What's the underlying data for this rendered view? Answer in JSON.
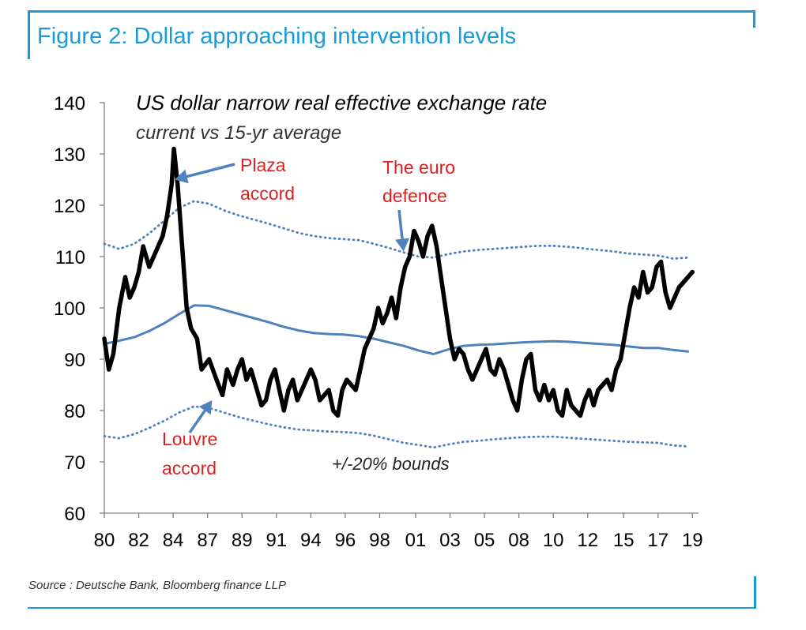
{
  "figure": {
    "title": "Figure 2: Dollar approaching intervention levels",
    "source": "Source : Deutsche Bank, Bloomberg finance LLP"
  },
  "colors": {
    "accent": "#1a9ad6",
    "series_main": "#000000",
    "series_avg": "#4f81bd",
    "annotation": "#e02020"
  },
  "chart_data": {
    "type": "line",
    "title": "US dollar narrow real effective exchange rate",
    "subtitle": "current vs 15-yr average",
    "xlabel": "",
    "ylabel": "",
    "xlim": [
      1980,
      2019.6
    ],
    "ylim": [
      60,
      140
    ],
    "yticks": [
      60,
      70,
      80,
      90,
      100,
      110,
      120,
      130,
      140
    ],
    "xtick_labels": [
      "80",
      "82",
      "84",
      "87",
      "89",
      "91",
      "94",
      "96",
      "98",
      "01",
      "03",
      "05",
      "08",
      "10",
      "12",
      "15",
      "17",
      "19"
    ],
    "xtick_values": [
      1980,
      1982.3,
      1984.6,
      1986.9,
      1989.2,
      1991.5,
      1993.8,
      1996.1,
      1998.4,
      2000.8,
      2003.1,
      2005.4,
      2007.7,
      2010.0,
      2012.3,
      2014.7,
      2017.0,
      2019.3
    ],
    "series": [
      {
        "name": "US dollar narrow REER",
        "style": "solid-thick",
        "x": [
          1980,
          1980.3,
          1980.6,
          1981,
          1981.4,
          1981.7,
          1982,
          1982.3,
          1982.6,
          1983,
          1983.3,
          1983.6,
          1983.9,
          1984.2,
          1984.5,
          1984.65,
          1984.9,
          1985.2,
          1985.5,
          1985.8,
          1986.2,
          1986.5,
          1987,
          1987.5,
          1987.9,
          1988.2,
          1988.6,
          1988.9,
          1989.2,
          1989.5,
          1989.8,
          1990.2,
          1990.5,
          1990.8,
          1991.1,
          1991.4,
          1991.7,
          1992,
          1992.3,
          1992.6,
          1992.9,
          1993.2,
          1993.5,
          1993.8,
          1994.1,
          1994.4,
          1994.7,
          1995,
          1995.3,
          1995.6,
          1995.9,
          1996.2,
          1996.5,
          1996.8,
          1997.1,
          1997.4,
          1997.7,
          1998,
          1998.3,
          1998.6,
          1998.9,
          1999.2,
          1999.5,
          1999.8,
          2000.1,
          2000.4,
          2000.7,
          2001,
          2001.3,
          2001.6,
          2001.9,
          2002.2,
          2002.5,
          2002.8,
          2003.1,
          2003.4,
          2003.7,
          2004,
          2004.3,
          2004.6,
          2004.9,
          2005.2,
          2005.5,
          2005.8,
          2006.1,
          2006.4,
          2006.7,
          2007,
          2007.3,
          2007.6,
          2007.9,
          2008.2,
          2008.5,
          2008.8,
          2009.1,
          2009.4,
          2009.7,
          2010,
          2010.3,
          2010.6,
          2010.9,
          2011.2,
          2011.5,
          2011.8,
          2012.1,
          2012.4,
          2012.7,
          2013,
          2013.3,
          2013.6,
          2013.9,
          2014.2,
          2014.5,
          2014.8,
          2015.1,
          2015.4,
          2015.7,
          2016,
          2016.3,
          2016.6,
          2016.9,
          2017.2,
          2017.5,
          2017.8,
          2018.1,
          2018.4,
          2018.7,
          2019,
          2019.3
        ],
        "y": [
          94,
          88,
          91,
          100,
          106,
          102,
          104,
          107,
          112,
          108,
          110,
          112,
          114,
          118,
          124,
          131,
          124,
          112,
          100,
          96,
          94,
          88,
          90,
          86,
          83,
          88,
          85,
          88,
          90,
          86,
          88,
          84,
          81,
          82,
          86,
          88,
          84,
          80,
          84,
          86,
          82,
          84,
          86,
          88,
          86,
          82,
          83,
          84,
          80,
          79,
          84,
          86,
          85,
          84,
          88,
          92,
          94,
          96,
          100,
          97,
          99,
          102,
          98,
          104,
          108,
          110,
          115,
          113,
          110,
          114,
          116,
          112,
          106,
          100,
          94,
          90,
          92,
          91,
          88,
          86,
          88,
          90,
          92,
          88,
          87,
          90,
          88,
          85,
          82,
          80,
          86,
          90,
          91,
          84,
          82,
          85,
          82,
          84,
          80,
          79,
          84,
          81,
          80,
          79,
          82,
          84,
          81,
          84,
          85,
          86,
          84,
          88,
          90,
          95,
          100,
          104,
          102,
          107,
          103,
          104,
          108,
          109,
          103,
          100,
          102,
          104,
          105,
          106,
          107
        ],
        "color_ref": "series_main"
      },
      {
        "name": "15-yr average",
        "style": "solid",
        "x": [
          1980,
          1981,
          1982,
          1983,
          1984,
          1985,
          1986,
          1987,
          1988,
          1989,
          1990,
          1991,
          1992,
          1993,
          1994,
          1995,
          1996,
          1997,
          1998,
          1999,
          2000,
          2001,
          2002,
          2003,
          2004,
          2005,
          2006,
          2007,
          2008,
          2009,
          2010,
          2011,
          2012,
          2013,
          2014,
          2015,
          2016,
          2017,
          2018,
          2019
        ],
        "y": [
          93,
          93.6,
          94.3,
          95.5,
          97,
          98.8,
          100.5,
          100.4,
          99.6,
          98.8,
          98,
          97.2,
          96.3,
          95.6,
          95.1,
          94.9,
          94.8,
          94.5,
          94,
          93.3,
          92.6,
          91.7,
          91,
          91.9,
          92.6,
          92.8,
          92.9,
          93.1,
          93.3,
          93.4,
          93.5,
          93.4,
          93.2,
          93,
          92.8,
          92.5,
          92.2,
          92.2,
          91.8,
          91.5
        ],
        "color_ref": "series_avg"
      },
      {
        "name": "+20% bound",
        "style": "dotted",
        "x": [
          1980,
          1981,
          1982,
          1983,
          1984,
          1985,
          1986,
          1987,
          1988,
          1989,
          1990,
          1991,
          1992,
          1993,
          1994,
          1995,
          1996,
          1997,
          1998,
          1999,
          2000,
          2001,
          2002,
          2003,
          2004,
          2005,
          2006,
          2007,
          2008,
          2009,
          2010,
          2011,
          2012,
          2013,
          2014,
          2015,
          2016,
          2017,
          2018,
          2019
        ],
        "y": [
          112.5,
          111.5,
          112.5,
          114.5,
          117,
          119.5,
          120.8,
          120.3,
          119,
          118,
          117.2,
          116.4,
          115.5,
          114.6,
          114,
          113.6,
          113.4,
          113.2,
          112.5,
          111.7,
          110.8,
          110,
          109.8,
          110.5,
          111,
          111.3,
          111.5,
          111.7,
          111.9,
          112.1,
          112.1,
          111.9,
          111.6,
          111.3,
          111,
          110.6,
          110.4,
          110.2,
          109.6,
          109.8
        ],
        "color_ref": "series_avg"
      },
      {
        "name": "-20% bound",
        "style": "dotted",
        "x": [
          1980,
          1981,
          1982,
          1983,
          1984,
          1985,
          1986,
          1987,
          1988,
          1989,
          1990,
          1991,
          1992,
          1993,
          1994,
          1995,
          1996,
          1997,
          1998,
          1999,
          2000,
          2001,
          2002,
          2003,
          2004,
          2005,
          2006,
          2007,
          2008,
          2009,
          2010,
          2011,
          2012,
          2013,
          2014,
          2015,
          2016,
          2017,
          2018,
          2019
        ],
        "y": [
          75,
          74.6,
          75.4,
          76.6,
          78,
          79.6,
          80.8,
          80.5,
          79.6,
          78.7,
          78,
          77.3,
          76.7,
          76.3,
          76.1,
          75.9,
          75.8,
          75.6,
          75.1,
          74.4,
          73.7,
          73.3,
          72.8,
          73.4,
          73.9,
          74.1,
          74.4,
          74.6,
          74.8,
          74.9,
          74.9,
          74.7,
          74.5,
          74.3,
          74.1,
          73.9,
          73.8,
          73.7,
          73.2,
          73
        ],
        "color_ref": "series_avg"
      }
    ],
    "annotations": [
      {
        "text_lines": [
          "Plaza",
          "accord"
        ],
        "color_ref": "annotation",
        "arrow_to_x": 1984.7,
        "arrow_to_y": 125
      },
      {
        "text_lines": [
          "The euro",
          "defence"
        ],
        "color_ref": "annotation",
        "arrow_to_x": 2000.0,
        "arrow_to_y": 111
      },
      {
        "text_lines": [
          "Louvre",
          "accord"
        ],
        "color_ref": "annotation",
        "arrow_to_x": 1987.2,
        "arrow_to_y": 82
      },
      {
        "text_lines": [
          "+/-20% bounds"
        ],
        "color_ref": "label"
      }
    ]
  }
}
